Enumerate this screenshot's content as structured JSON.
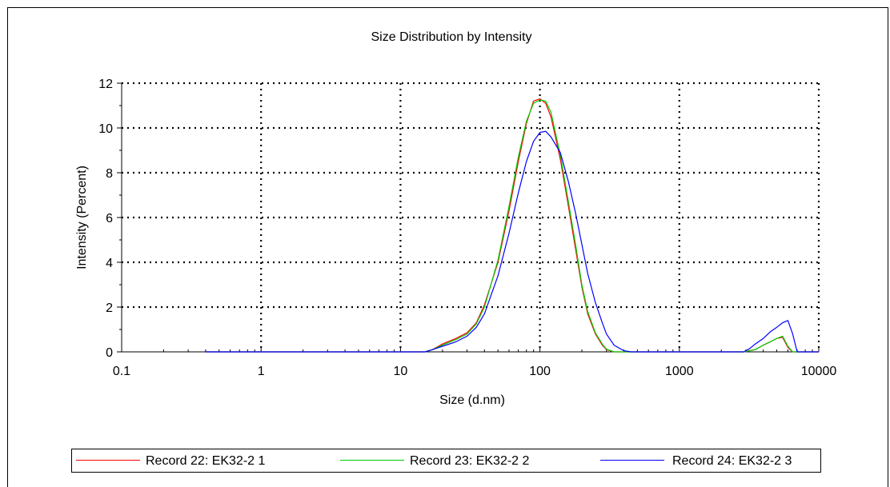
{
  "chart_data": {
    "type": "line",
    "title": "Size Distribution by Intensity",
    "xlabel": "Size (d.nm)",
    "ylabel": "Intensity (Percent)",
    "x_scale": "log",
    "xlim": [
      0.1,
      10000
    ],
    "ylim": [
      0,
      12
    ],
    "x_ticks": [
      0.1,
      1,
      10,
      100,
      1000,
      10000
    ],
    "x_tick_labels": [
      "0.1",
      "1",
      "10",
      "100",
      "1000",
      "10000"
    ],
    "y_ticks": [
      0,
      2,
      4,
      6,
      8,
      10,
      12
    ],
    "y_tick_labels": [
      "0",
      "2",
      "4",
      "6",
      "8",
      "10",
      "12"
    ],
    "grid": true,
    "legend_position": "bottom",
    "series": [
      {
        "name": "Record 22: EK32-2 1",
        "color": "#ff0000",
        "x": [
          0.4,
          1,
          5,
          10,
          15,
          17,
          20,
          25,
          30,
          35,
          40,
          50,
          60,
          70,
          80,
          90,
          100,
          110,
          120,
          140,
          160,
          180,
          200,
          220,
          250,
          280,
          300,
          340,
          400,
          600,
          1000,
          2000,
          2900,
          3500,
          4000,
          4500,
          5000,
          5500,
          6000,
          6500,
          7000,
          8000,
          10000
        ],
        "y": [
          0,
          0,
          0,
          0,
          0,
          0.1,
          0.35,
          0.6,
          0.85,
          1.3,
          2.1,
          4.0,
          6.3,
          8.5,
          10.2,
          11.2,
          11.3,
          11.1,
          10.5,
          8.6,
          6.5,
          4.6,
          2.9,
          1.7,
          0.8,
          0.3,
          0.1,
          0,
          0,
          0,
          0,
          0,
          0,
          0.1,
          0.3,
          0.45,
          0.6,
          0.65,
          0.2,
          0,
          0,
          0,
          0
        ]
      },
      {
        "name": "Record 23: EK32-2 2",
        "color": "#00cc00",
        "x": [
          0.4,
          1,
          5,
          10,
          15,
          17,
          20,
          25,
          30,
          35,
          40,
          50,
          60,
          70,
          80,
          90,
          100,
          110,
          120,
          140,
          160,
          180,
          200,
          220,
          250,
          280,
          300,
          340,
          400,
          600,
          1000,
          2000,
          2900,
          3500,
          4000,
          4500,
          5000,
          5500,
          6000,
          6500,
          7000,
          8000,
          10000
        ],
        "y": [
          0,
          0,
          0,
          0,
          0,
          0.1,
          0.3,
          0.55,
          0.8,
          1.25,
          2.0,
          4.1,
          6.5,
          8.7,
          10.3,
          11.1,
          11.25,
          11.2,
          10.7,
          8.8,
          6.7,
          4.8,
          3.0,
          1.8,
          0.85,
          0.35,
          0.12,
          0,
          0,
          0,
          0,
          0,
          0,
          0.1,
          0.3,
          0.45,
          0.6,
          0.7,
          0.25,
          0,
          0,
          0,
          0
        ]
      },
      {
        "name": "Record 24: EK32-2 3",
        "color": "#0000ff",
        "x": [
          0.4,
          1,
          5,
          10,
          15,
          17,
          20,
          25,
          30,
          35,
          40,
          50,
          60,
          70,
          80,
          90,
          100,
          110,
          120,
          140,
          160,
          180,
          200,
          220,
          250,
          280,
          300,
          340,
          400,
          450,
          600,
          1000,
          2000,
          2900,
          3200,
          3500,
          4000,
          4500,
          5000,
          5500,
          6000,
          6500,
          7000,
          8000,
          10000
        ],
        "y": [
          0,
          0,
          0,
          0,
          0,
          0.1,
          0.25,
          0.45,
          0.7,
          1.1,
          1.7,
          3.4,
          5.3,
          7.1,
          8.5,
          9.4,
          9.8,
          9.85,
          9.6,
          8.9,
          7.6,
          6.2,
          4.8,
          3.5,
          2.2,
          1.3,
          0.8,
          0.3,
          0.05,
          0,
          0,
          0,
          0,
          0,
          0.15,
          0.35,
          0.6,
          0.9,
          1.1,
          1.3,
          1.4,
          0.8,
          0,
          0,
          0
        ]
      }
    ]
  }
}
